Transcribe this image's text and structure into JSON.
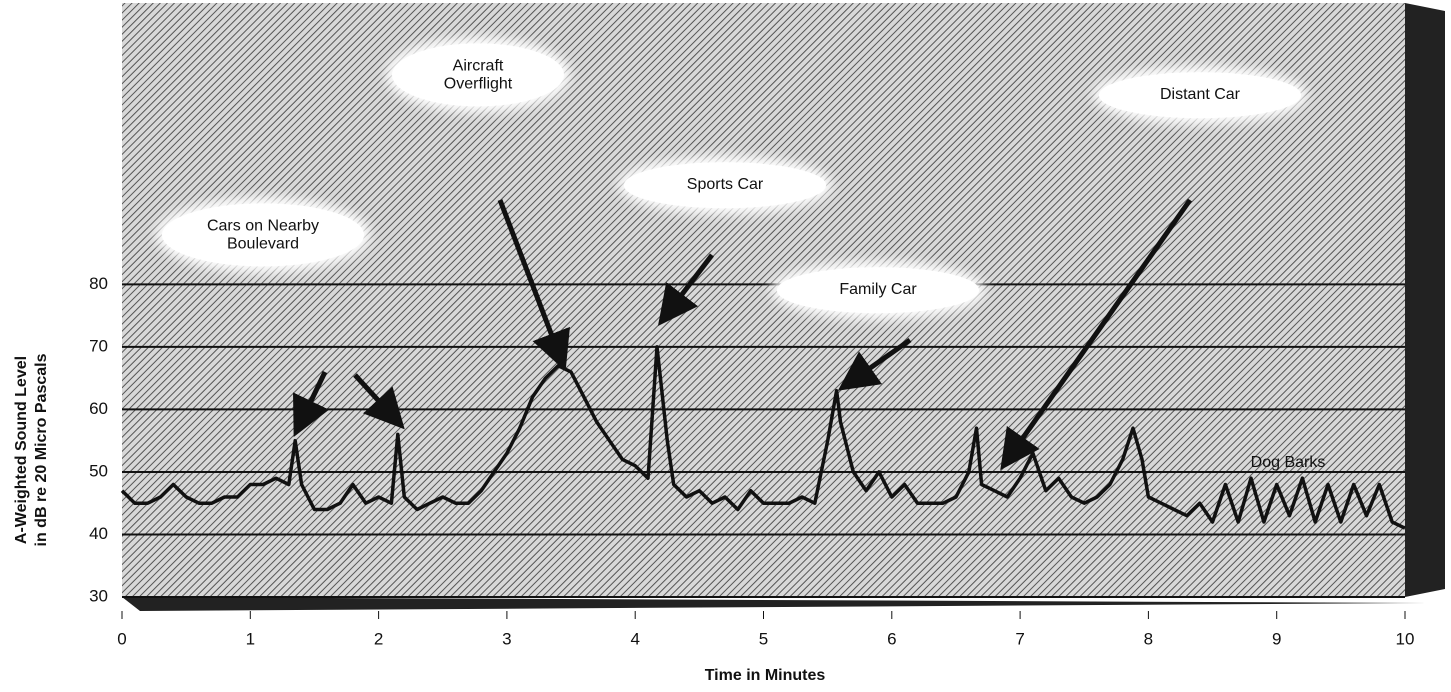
{
  "chart_data": {
    "type": "line",
    "xlabel": "Time in Minutes",
    "ylabel": [
      "A-Weighted Sound Level",
      "in dB re 20 Micro Pascals"
    ],
    "x": [
      0,
      0.1,
      0.2,
      0.3,
      0.4,
      0.5,
      0.6,
      0.7,
      0.8,
      0.9,
      1.0,
      1.1,
      1.2,
      1.3,
      1.35,
      1.4,
      1.5,
      1.6,
      1.7,
      1.8,
      1.9,
      2.0,
      2.1,
      2.15,
      2.2,
      2.3,
      2.4,
      2.5,
      2.6,
      2.7,
      2.8,
      2.9,
      3.0,
      3.1,
      3.2,
      3.3,
      3.4,
      3.5,
      3.6,
      3.7,
      3.8,
      3.9,
      4.0,
      4.1,
      4.17,
      4.25,
      4.3,
      4.4,
      4.5,
      4.6,
      4.7,
      4.8,
      4.9,
      5.0,
      5.1,
      5.2,
      5.3,
      5.4,
      5.5,
      5.57,
      5.6,
      5.7,
      5.8,
      5.9,
      6.0,
      6.1,
      6.2,
      6.3,
      6.4,
      6.5,
      6.6,
      6.66,
      6.7,
      6.8,
      6.9,
      7.0,
      7.1,
      7.2,
      7.3,
      7.4,
      7.5,
      7.6,
      7.7,
      7.8,
      7.88,
      7.95,
      8.0,
      8.1,
      8.2,
      8.3,
      8.4,
      8.5,
      8.6,
      8.7,
      8.8,
      8.9,
      9.0,
      9.1,
      9.2,
      9.3,
      9.4,
      9.5,
      9.6,
      9.7,
      9.8,
      9.9,
      10.0
    ],
    "values": [
      47,
      45,
      45,
      46,
      48,
      46,
      45,
      45,
      46,
      46,
      48,
      48,
      49,
      48,
      55,
      48,
      44,
      44,
      45,
      48,
      45,
      46,
      45,
      56,
      46,
      44,
      45,
      46,
      45,
      45,
      47,
      50,
      53,
      57,
      62,
      65,
      67,
      66,
      62,
      58,
      55,
      52,
      51,
      49,
      70,
      55,
      48,
      46,
      47,
      45,
      46,
      44,
      47,
      45,
      45,
      45,
      46,
      45,
      55,
      63,
      58,
      50,
      47,
      50,
      46,
      48,
      45,
      45,
      45,
      46,
      50,
      57,
      48,
      47,
      46,
      49,
      53,
      47,
      49,
      46,
      45,
      46,
      48,
      52,
      57,
      52,
      46,
      45,
      44,
      43,
      45,
      42,
      48,
      42,
      49,
      42,
      48,
      43,
      49,
      42,
      48,
      42,
      48,
      43,
      48,
      42,
      41
    ],
    "color": "#111111",
    "xlim": [
      0,
      10
    ],
    "xticks": [
      0,
      1,
      2,
      3,
      4,
      5,
      6,
      7,
      8,
      9,
      10
    ],
    "ylim": [
      30,
      125
    ],
    "yticks": [
      30,
      40,
      50,
      60,
      70,
      80
    ],
    "grid": true,
    "annotations": [
      "Aircraft Overflight",
      "Cars on Nearby Boulevard",
      "Sports Car",
      "Family Car",
      "Distant Car",
      "Dog Barks"
    ]
  }
}
